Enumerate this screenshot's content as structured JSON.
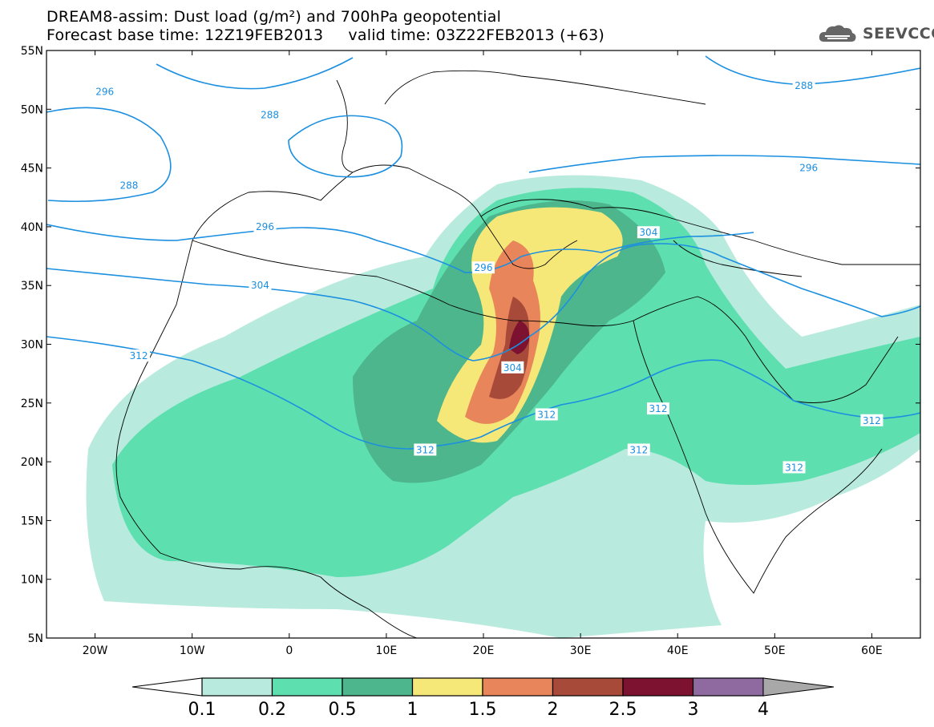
{
  "title": {
    "line1": "DREAM8-assim: Dust load (g/m²) and 700hPa geopotential",
    "line2": "Forecast base time: 12Z19FEB2013     valid time: 03Z22FEB2013 (+63)"
  },
  "logo": {
    "text": "SEEVCCC",
    "icon": "cloud-icon"
  },
  "axes": {
    "lat_labels": [
      "55N",
      "50N",
      "45N",
      "40N",
      "35N",
      "30N",
      "25N",
      "20N",
      "15N",
      "10N",
      "5N"
    ],
    "lat_values": [
      55,
      50,
      45,
      40,
      35,
      30,
      25,
      20,
      15,
      10,
      5
    ],
    "lon_labels": [
      "20W",
      "10W",
      "0",
      "10E",
      "20E",
      "30E",
      "40E",
      "50E",
      "60E"
    ],
    "lon_values": [
      -20,
      -10,
      0,
      10,
      20,
      30,
      40,
      50,
      60
    ],
    "lon_range": [
      -25,
      65
    ],
    "lat_range": [
      5,
      55
    ]
  },
  "colorbar": {
    "labels": [
      "0.1",
      "0.2",
      "0.5",
      "1",
      "1.5",
      "2",
      "2.5",
      "3",
      "4"
    ],
    "colors": [
      "#b8eadd",
      "#5ddfb0",
      "#4eb68c",
      "#f5e878",
      "#e8855a",
      "#a84a3a",
      "#7c1230",
      "#8e6aa0"
    ],
    "under_color": "#ffffff",
    "over_color": "#a8a8a8"
  },
  "contour_color": "#1b8fe0",
  "contour_labels": [
    {
      "text": "296",
      "lon": -19,
      "lat": 51.5
    },
    {
      "text": "288",
      "lon": -2,
      "lat": 49.5
    },
    {
      "text": "288",
      "lon": 53,
      "lat": 52
    },
    {
      "text": "288",
      "lon": -16.5,
      "lat": 43.5
    },
    {
      "text": "296",
      "lon": -2.5,
      "lat": 40
    },
    {
      "text": "296",
      "lon": 20,
      "lat": 36.5
    },
    {
      "text": "304",
      "lon": -3,
      "lat": 35
    },
    {
      "text": "304",
      "lon": 37,
      "lat": 39.5
    },
    {
      "text": "296",
      "lon": 53.5,
      "lat": 45
    },
    {
      "text": "312",
      "lon": -15.5,
      "lat": 29
    },
    {
      "text": "304",
      "lon": 23,
      "lat": 28
    },
    {
      "text": "312",
      "lon": 26.5,
      "lat": 24
    },
    {
      "text": "312",
      "lon": 38,
      "lat": 24.5
    },
    {
      "text": "312",
      "lon": 36,
      "lat": 21
    },
    {
      "text": "312",
      "lon": 52,
      "lat": 19.5
    },
    {
      "text": "312",
      "lon": 14,
      "lat": 21
    },
    {
      "text": "312",
      "lon": 60,
      "lat": 23.5
    }
  ]
}
